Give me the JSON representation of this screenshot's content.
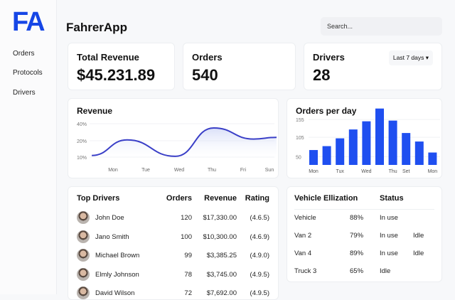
{
  "app": {
    "logo": "FA",
    "title": "FahrerApp",
    "search_placeholder": "Search..."
  },
  "sidebar": {
    "items": [
      {
        "label": "Orders"
      },
      {
        "label": "Protocols"
      },
      {
        "label": "Drivers"
      }
    ]
  },
  "stats": [
    {
      "label": "Total Revenue",
      "value": "$45.231.89"
    },
    {
      "label": "Orders",
      "value": "540"
    },
    {
      "label": "Drivers",
      "value": "28",
      "range": "Last 7 days ▾"
    }
  ],
  "chart_data": [
    {
      "type": "line",
      "title": "Revenue",
      "x_ticks": [
        "Mon",
        "Tue",
        "Wed",
        "Thu",
        "Fri",
        "Sun"
      ],
      "y_ticks": [
        "40%",
        "20%",
        "10%"
      ],
      "series": [
        {
          "name": "Revenue",
          "x": [
            -0.65,
            0.43,
            1.9,
            3.08,
            4.3,
            5
          ],
          "values": [
            11,
            21,
            10.5,
            35,
            22,
            24
          ]
        }
      ],
      "color": "#3a3fc7"
    },
    {
      "type": "bar",
      "title": "Orders per day",
      "categories": [
        "Mon",
        "",
        "Tux",
        "",
        "Wed",
        "",
        "Thu",
        "Set",
        "",
        "Mon"
      ],
      "values": [
        69,
        80,
        102,
        127,
        150,
        186,
        152,
        117,
        93,
        62
      ],
      "y_ticks": [
        "155",
        "105",
        "50"
      ],
      "ylim": [
        27,
        200
      ],
      "color": "#1f4ff0"
    }
  ],
  "drivers": {
    "title": "Top Drivers",
    "headers": [
      "Orders",
      "Revenue",
      "Rating"
    ],
    "rows": [
      {
        "name": "John Doe",
        "orders": "120",
        "revenue": "$17,330.00",
        "rating": "(4.6.5)"
      },
      {
        "name": "Jano Smith",
        "orders": "100",
        "revenue": "$10,300.00",
        "rating": "(4.6.9)"
      },
      {
        "name": "Michael Brown",
        "orders": "99",
        "revenue": "$3,385.25",
        "rating": "(4.9.0)"
      },
      {
        "name": "Elmly Johnson",
        "orders": "78",
        "revenue": "$3,745.00",
        "rating": "(4.9.5)"
      },
      {
        "name": "David Wilson",
        "orders": "72",
        "revenue": "$7,692.00",
        "rating": "(4.9.5)"
      }
    ]
  },
  "vehicles": {
    "title": "Vehicle Ellization",
    "status_header": "Status",
    "rows": [
      {
        "name": "Vehicle",
        "util": "88%",
        "status": "In use",
        "extra": ""
      },
      {
        "name": "Van 2",
        "util": "79%",
        "status": "In use",
        "extra": "Idle"
      },
      {
        "name": "Van 4",
        "util": "89%",
        "status": "In use",
        "extra": "Idle"
      },
      {
        "name": "Truck 3",
        "util": "65%",
        "status": "Idle",
        "extra": ""
      }
    ]
  }
}
